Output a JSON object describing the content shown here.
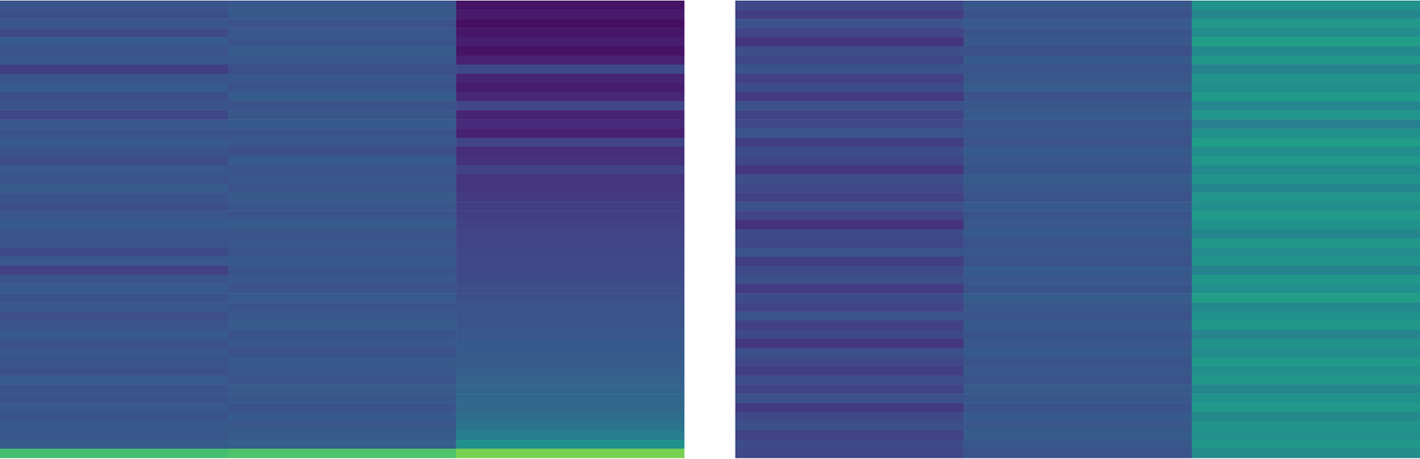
{
  "chart_data": [
    {
      "type": "heatmap",
      "tick_labels": false,
      "zlim": [
        0,
        1
      ],
      "cells": [
        [
          0.26,
          0.27,
          0.05
        ],
        [
          0.24,
          0.28,
          0.07
        ],
        [
          0.27,
          0.25,
          0.04
        ],
        [
          0.22,
          0.27,
          0.06
        ],
        [
          0.28,
          0.26,
          0.08
        ],
        [
          0.25,
          0.29,
          0.05
        ],
        [
          0.27,
          0.27,
          0.09
        ],
        [
          0.18,
          0.24,
          0.22
        ],
        [
          0.26,
          0.27,
          0.1
        ],
        [
          0.28,
          0.26,
          0.08
        ],
        [
          0.24,
          0.29,
          0.11
        ],
        [
          0.26,
          0.25,
          0.21
        ],
        [
          0.21,
          0.27,
          0.1
        ],
        [
          0.27,
          0.28,
          0.12
        ],
        [
          0.25,
          0.26,
          0.09
        ],
        [
          0.28,
          0.27,
          0.2
        ],
        [
          0.26,
          0.24,
          0.13
        ],
        [
          0.23,
          0.28,
          0.14
        ],
        [
          0.27,
          0.26,
          0.19
        ],
        [
          0.25,
          0.27,
          0.15
        ],
        [
          0.29,
          0.25,
          0.16
        ],
        [
          0.26,
          0.28,
          0.17
        ],
        [
          0.24,
          0.27,
          0.18
        ],
        [
          0.27,
          0.26,
          0.18
        ],
        [
          0.28,
          0.29,
          0.19
        ],
        [
          0.25,
          0.26,
          0.2
        ],
        [
          0.26,
          0.27,
          0.2
        ],
        [
          0.23,
          0.25,
          0.21
        ],
        [
          0.27,
          0.28,
          0.22
        ],
        [
          0.19,
          0.26,
          0.22
        ],
        [
          0.26,
          0.27,
          0.23
        ],
        [
          0.28,
          0.25,
          0.24
        ],
        [
          0.25,
          0.28,
          0.24
        ],
        [
          0.27,
          0.26,
          0.25
        ],
        [
          0.24,
          0.27,
          0.26
        ],
        [
          0.26,
          0.29,
          0.26
        ],
        [
          0.28,
          0.26,
          0.27
        ],
        [
          0.25,
          0.27,
          0.28
        ],
        [
          0.27,
          0.25,
          0.28
        ],
        [
          0.26,
          0.28,
          0.29
        ],
        [
          0.24,
          0.27,
          0.3
        ],
        [
          0.28,
          0.26,
          0.31
        ],
        [
          0.26,
          0.28,
          0.32
        ],
        [
          0.25,
          0.27,
          0.33
        ],
        [
          0.27,
          0.26,
          0.34
        ],
        [
          0.26,
          0.28,
          0.36
        ],
        [
          0.28,
          0.27,
          0.38
        ],
        [
          0.27,
          0.29,
          0.42
        ],
        [
          0.29,
          0.3,
          0.5
        ],
        [
          0.7,
          0.72,
          0.8
        ]
      ]
    },
    {
      "type": "heatmap",
      "tick_labels": false,
      "zlim": [
        0,
        1
      ],
      "cells": [
        [
          0.22,
          0.27,
          0.5
        ],
        [
          0.18,
          0.25,
          0.46
        ],
        [
          0.25,
          0.28,
          0.53
        ],
        [
          0.2,
          0.26,
          0.48
        ],
        [
          0.15,
          0.27,
          0.55
        ],
        [
          0.24,
          0.24,
          0.47
        ],
        [
          0.21,
          0.28,
          0.52
        ],
        [
          0.26,
          0.26,
          0.44
        ],
        [
          0.19,
          0.27,
          0.51
        ],
        [
          0.23,
          0.29,
          0.49
        ],
        [
          0.17,
          0.25,
          0.54
        ],
        [
          0.25,
          0.27,
          0.46
        ],
        [
          0.2,
          0.28,
          0.52
        ],
        [
          0.22,
          0.26,
          0.43
        ],
        [
          0.26,
          0.27,
          0.5
        ],
        [
          0.18,
          0.25,
          0.55
        ],
        [
          0.23,
          0.28,
          0.48
        ],
        [
          0.21,
          0.27,
          0.53
        ],
        [
          0.16,
          0.26,
          0.47
        ],
        [
          0.24,
          0.29,
          0.51
        ],
        [
          0.22,
          0.27,
          0.45
        ],
        [
          0.19,
          0.25,
          0.52
        ],
        [
          0.25,
          0.28,
          0.49
        ],
        [
          0.2,
          0.26,
          0.54
        ],
        [
          0.14,
          0.27,
          0.5
        ],
        [
          0.23,
          0.28,
          0.46
        ],
        [
          0.21,
          0.26,
          0.53
        ],
        [
          0.26,
          0.27,
          0.48
        ],
        [
          0.18,
          0.25,
          0.51
        ],
        [
          0.22,
          0.28,
          0.44
        ],
        [
          0.24,
          0.27,
          0.52
        ],
        [
          0.17,
          0.26,
          0.49
        ],
        [
          0.23,
          0.29,
          0.55
        ],
        [
          0.2,
          0.27,
          0.47
        ],
        [
          0.25,
          0.25,
          0.5
        ],
        [
          0.19,
          0.28,
          0.53
        ],
        [
          0.22,
          0.26,
          0.45
        ],
        [
          0.16,
          0.27,
          0.51
        ],
        [
          0.24,
          0.28,
          0.48
        ],
        [
          0.21,
          0.26,
          0.54
        ],
        [
          0.18,
          0.27,
          0.49
        ],
        [
          0.23,
          0.25,
          0.52
        ],
        [
          0.2,
          0.28,
          0.46
        ],
        [
          0.25,
          0.27,
          0.5
        ],
        [
          0.17,
          0.26,
          0.53
        ],
        [
          0.22,
          0.28,
          0.47
        ],
        [
          0.24,
          0.27,
          0.51
        ],
        [
          0.19,
          0.29,
          0.49
        ],
        [
          0.23,
          0.27,
          0.52
        ],
        [
          0.21,
          0.26,
          0.48
        ]
      ]
    }
  ]
}
